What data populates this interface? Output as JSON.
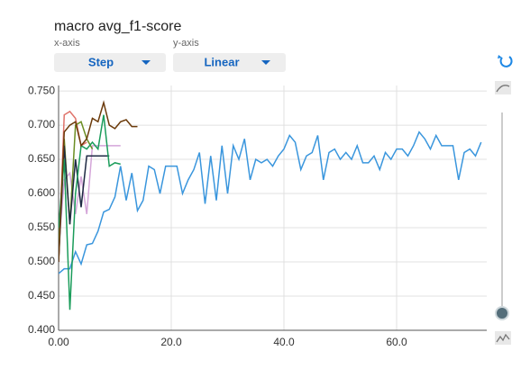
{
  "chart_data": {
    "type": "line",
    "title": "macro avg_f1-score",
    "x_axis_label": "x-axis",
    "y_axis_label": "y-axis",
    "x_axis_mode": "Step",
    "y_axis_mode": "Linear",
    "xlim": [
      0,
      76
    ],
    "ylim": [
      0.4,
      0.758
    ],
    "xticks": [
      {
        "value": 0,
        "label": "0.00"
      },
      {
        "value": 20,
        "label": "20.0"
      },
      {
        "value": 40,
        "label": "40.0"
      },
      {
        "value": 60,
        "label": "60.0"
      }
    ],
    "yticks": [
      {
        "value": 0.4,
        "label": "0.400"
      },
      {
        "value": 0.45,
        "label": "0.450"
      },
      {
        "value": 0.5,
        "label": "0.500"
      },
      {
        "value": 0.55,
        "label": "0.550"
      },
      {
        "value": 0.6,
        "label": "0.600"
      },
      {
        "value": 0.65,
        "label": "0.650"
      },
      {
        "value": 0.7,
        "label": "0.700"
      },
      {
        "value": 0.75,
        "label": "0.750"
      }
    ],
    "grid": true,
    "series": [
      {
        "color": "#3a96dd",
        "x": [
          0,
          1,
          2,
          3,
          4,
          5,
          6,
          7,
          8,
          9,
          10,
          11,
          12,
          13,
          14,
          15,
          16,
          17,
          18,
          19,
          20,
          21,
          22,
          23,
          24,
          25,
          26,
          27,
          28,
          29,
          30,
          31,
          32,
          33,
          34,
          35,
          36,
          37,
          38,
          39,
          40,
          41,
          42,
          43,
          44,
          45,
          46,
          47,
          48,
          49,
          50,
          51,
          52,
          53,
          54,
          55,
          56,
          57,
          58,
          59,
          60,
          61,
          62,
          63,
          64,
          65,
          66,
          67,
          68,
          69,
          70,
          71,
          72,
          73,
          74,
          75
        ],
        "values": [
          0.483,
          0.49,
          0.49,
          0.515,
          0.497,
          0.525,
          0.527,
          0.545,
          0.573,
          0.577,
          0.595,
          0.64,
          0.59,
          0.63,
          0.575,
          0.59,
          0.64,
          0.635,
          0.6,
          0.64,
          0.64,
          0.64,
          0.6,
          0.62,
          0.635,
          0.66,
          0.585,
          0.655,
          0.59,
          0.67,
          0.6,
          0.67,
          0.65,
          0.68,
          0.62,
          0.65,
          0.645,
          0.65,
          0.64,
          0.655,
          0.665,
          0.685,
          0.675,
          0.635,
          0.655,
          0.66,
          0.685,
          0.62,
          0.66,
          0.665,
          0.65,
          0.66,
          0.65,
          0.67,
          0.645,
          0.645,
          0.655,
          0.635,
          0.66,
          0.65,
          0.665,
          0.665,
          0.655,
          0.67,
          0.69,
          0.68,
          0.665,
          0.685,
          0.67,
          0.67,
          0.67,
          0.62,
          0.66,
          0.665,
          0.655,
          0.675
        ]
      },
      {
        "color": "#e0736b",
        "x": [
          0,
          1,
          2,
          3,
          4,
          5
        ],
        "values": [
          0.5,
          0.715,
          0.72,
          0.71,
          0.67,
          0.675
        ]
      },
      {
        "color": "#d4a5d9",
        "x": [
          0,
          1,
          2,
          3,
          4,
          5,
          6,
          7,
          8,
          9,
          10,
          11
        ],
        "values": [
          0.52,
          0.62,
          0.63,
          0.57,
          0.625,
          0.57,
          0.67,
          0.67,
          0.67,
          0.67,
          0.67,
          0.67
        ]
      },
      {
        "color": "#6b8e23",
        "x": [
          0,
          1,
          2,
          3,
          4,
          5,
          6
        ],
        "values": [
          0.52,
          0.68,
          0.555,
          0.7,
          0.705,
          0.68,
          0.665
        ]
      },
      {
        "color": "#1f2a44",
        "x": [
          0,
          1,
          2,
          3,
          4,
          5,
          6,
          7,
          8,
          9
        ],
        "values": [
          0.5,
          0.67,
          0.555,
          0.65,
          0.58,
          0.655,
          0.655,
          0.655,
          0.655,
          0.655
        ]
      },
      {
        "color": "#1a9c5a",
        "x": [
          0,
          1,
          2,
          3,
          4,
          5,
          6,
          7,
          8,
          9,
          10,
          11
        ],
        "values": [
          0.55,
          0.65,
          0.43,
          0.6,
          0.67,
          0.665,
          0.675,
          0.665,
          0.715,
          0.64,
          0.645,
          0.643
        ]
      },
      {
        "color": "#6b3a0a",
        "x": [
          0,
          1,
          2,
          3,
          4,
          5,
          6,
          7,
          8,
          9,
          10,
          11,
          12,
          13,
          14
        ],
        "values": [
          0.5,
          0.69,
          0.7,
          0.705,
          0.67,
          0.68,
          0.71,
          0.705,
          0.733,
          0.7,
          0.695,
          0.705,
          0.708,
          0.698,
          0.698
        ]
      }
    ]
  }
}
